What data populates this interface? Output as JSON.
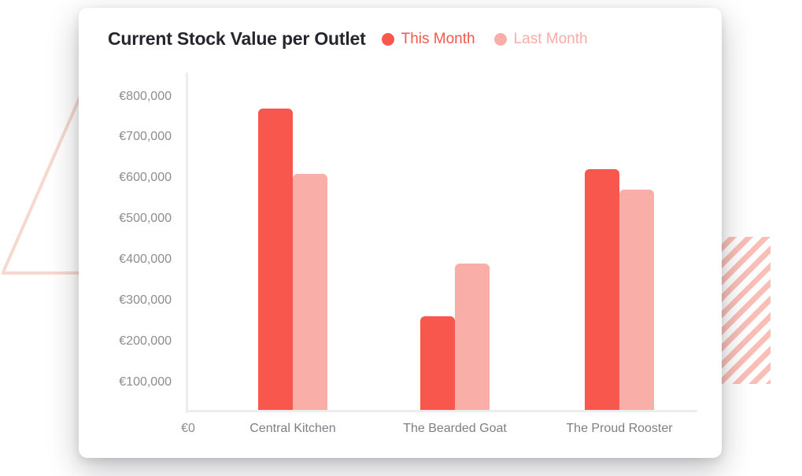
{
  "card": {
    "title": "Current Stock Value per Outlet"
  },
  "chart_data": {
    "type": "bar",
    "title": "Current Stock Value per Outlet",
    "categories": [
      "Central Kitchen",
      "The Bearded Goat",
      "The Proud Rooster"
    ],
    "series": [
      {
        "name": "This Month",
        "color": "#F7574D",
        "values": [
          770000,
          260000,
          620000
        ]
      },
      {
        "name": "Last Month",
        "color": "#F9AFA8",
        "values": [
          610000,
          390000,
          570000
        ]
      }
    ],
    "y_ticks": [
      "€800,000",
      "€700,000",
      "€600,000",
      "€500,000",
      "€400,000",
      "€300,000",
      "€200,000",
      "€100,000"
    ],
    "origin_label": "€0",
    "ylabel": "",
    "xlabel": "",
    "ylim": [
      0,
      800000
    ],
    "currency": "EUR",
    "grid": false,
    "legend_position": "top"
  },
  "colors": {
    "accent_this_month": "#F7574D",
    "accent_last_month": "#F9AFA8",
    "title_text": "#26262E",
    "axis_label_text": "#8C8C92",
    "axis_line": "#EDEDEE",
    "deco_triangle": "#F6D8CE",
    "deco_stripes": "#F9BFB7",
    "card_background": "#FFFFFF"
  }
}
